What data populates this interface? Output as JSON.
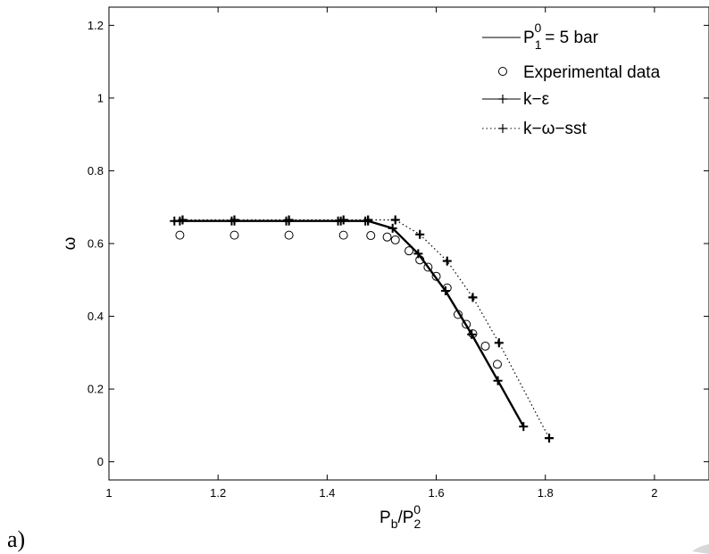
{
  "panel_label": "a)",
  "chart_data": {
    "type": "line",
    "xlabel": "P_b/P_2^0",
    "ylabel": "ω",
    "xlim": [
      1,
      2.1
    ],
    "ylim": [
      -0.05,
      1.25
    ],
    "x_ticks": [
      1,
      1.2,
      1.4,
      1.6,
      1.8,
      2
    ],
    "x_tick_labels": [
      "1",
      "1.2",
      "1.4",
      "1.6",
      "1.8",
      "2"
    ],
    "y_ticks": [
      0,
      0.2,
      0.4,
      0.6,
      0.8,
      1,
      1.2
    ],
    "y_tick_labels": [
      "0",
      "0.2",
      "0.4",
      "0.6",
      "0.8",
      "1",
      "1.2"
    ],
    "grid": false,
    "legend_position": "top-right",
    "legend": [
      {
        "label": "= 5 bar",
        "prefix": "P",
        "sub": "1",
        "sup": "0",
        "style": "solid-line"
      },
      {
        "label": "Experimental data",
        "style": "circle-marker"
      },
      {
        "label": "k−ε",
        "style": "solid-plus"
      },
      {
        "label": "k−ω−sst",
        "style": "dotted-plus"
      }
    ],
    "series": [
      {
        "name": "Experimental data",
        "style": "circle",
        "x": [
          1.13,
          1.23,
          1.33,
          1.43,
          1.48,
          1.51,
          1.525,
          1.55,
          1.57,
          1.585,
          1.6,
          1.62,
          1.64,
          1.655,
          1.667,
          1.69,
          1.712
        ],
        "y": [
          0.623,
          0.623,
          0.623,
          0.623,
          0.622,
          0.618,
          0.61,
          0.58,
          0.555,
          0.535,
          0.51,
          0.478,
          0.405,
          0.378,
          0.352,
          0.318,
          0.268
        ]
      },
      {
        "name": "k−ε",
        "style": "solid-plus",
        "x": [
          1.12,
          1.13,
          1.225,
          1.23,
          1.325,
          1.33,
          1.42,
          1.425,
          1.47,
          1.475,
          1.52,
          1.567,
          1.617,
          1.665,
          1.713,
          1.76
        ],
        "y": [
          0.662,
          0.662,
          0.662,
          0.662,
          0.662,
          0.662,
          0.662,
          0.662,
          0.662,
          0.662,
          0.642,
          0.572,
          0.47,
          0.35,
          0.223,
          0.097
        ]
      },
      {
        "name": "k−ω−sst",
        "style": "dotted-plus",
        "x": [
          1.135,
          1.23,
          1.33,
          1.43,
          1.475,
          1.525,
          1.57,
          1.62,
          1.667,
          1.715,
          1.807
        ],
        "y": [
          0.665,
          0.665,
          0.665,
          0.665,
          0.665,
          0.665,
          0.625,
          0.552,
          0.452,
          0.327,
          0.065
        ]
      }
    ]
  }
}
